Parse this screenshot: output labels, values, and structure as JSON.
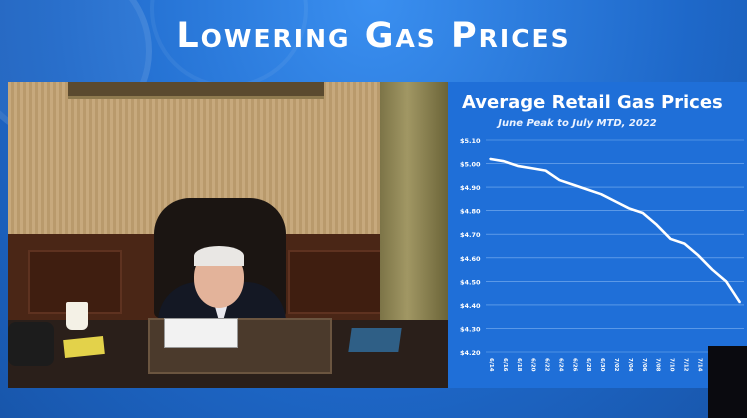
{
  "headline": "Lowering Gas Prices",
  "chart_data": {
    "type": "line",
    "title": "Average Retail Gas Prices",
    "subtitle": "June Peak to July MTD, 2022",
    "xlabel": "",
    "ylabel": "",
    "yticks": [
      "$5.10",
      "$5.00",
      "$4.90",
      "$4.80",
      "$4.70",
      "$4.60",
      "$4.50",
      "$4.40",
      "$4.30",
      "$4.20"
    ],
    "ylim": [
      4.2,
      5.1
    ],
    "grid": true,
    "x": [
      "6/14",
      "6/16",
      "6/18",
      "6/20",
      "6/22",
      "6/24",
      "6/26",
      "6/28",
      "6/30",
      "7/02",
      "7/04",
      "7/06",
      "7/08",
      "7/10",
      "7/12",
      "7/14",
      "7/16",
      "7/18",
      "7/20"
    ],
    "series": [
      {
        "values": [
          5.02,
          5.01,
          4.99,
          4.98,
          4.97,
          4.93,
          4.91,
          4.89,
          4.87,
          4.84,
          4.81,
          4.79,
          4.74,
          4.68,
          4.66,
          4.61,
          4.55,
          4.5,
          4.41
        ]
      }
    ],
    "line_color": "#ffffff",
    "grid_color": "#7fb2f0"
  }
}
